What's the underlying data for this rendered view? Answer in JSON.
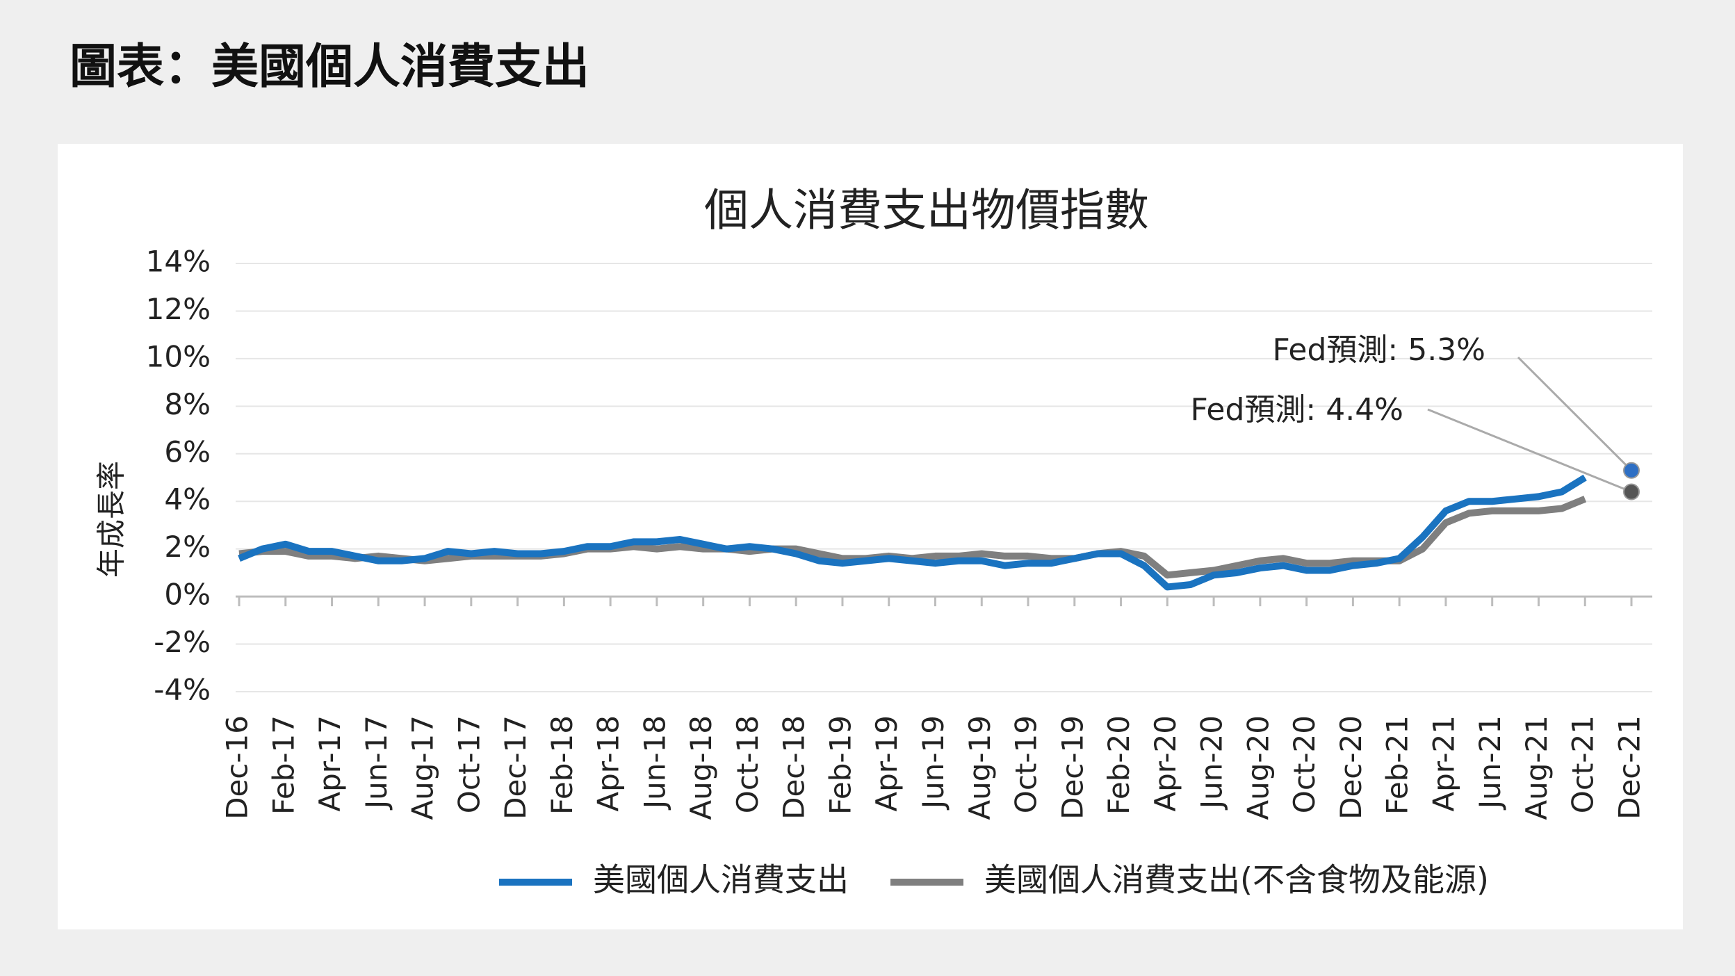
{
  "page_title": "圖表：美國個人消費支出",
  "chart_data": {
    "type": "line",
    "title": "個人消費支出物價指數",
    "y_label": "年成長率",
    "categories": [
      "Dec-16",
      null,
      "Feb-17",
      null,
      "Apr-17",
      null,
      "Jun-17",
      null,
      "Aug-17",
      null,
      "Oct-17",
      null,
      "Dec-17",
      null,
      "Feb-18",
      null,
      "Apr-18",
      null,
      "Jun-18",
      null,
      "Aug-18",
      null,
      "Oct-18",
      null,
      "Dec-18",
      null,
      "Feb-19",
      null,
      "Apr-19",
      null,
      "Jun-19",
      null,
      "Aug-19",
      null,
      "Oct-19",
      null,
      "Dec-19",
      null,
      "Feb-20",
      null,
      "Apr-20",
      null,
      "Jun-20",
      null,
      "Aug-20",
      null,
      "Oct-20",
      null,
      "Dec-20",
      null,
      "Feb-21",
      null,
      "Apr-21",
      null,
      "Jun-21",
      null,
      "Aug-21",
      null,
      "Oct-21",
      null,
      "Dec-21"
    ],
    "series": [
      {
        "name": "美國個人消費支出",
        "color": "#1a73c0",
        "values": [
          1.6,
          2.0,
          2.2,
          1.9,
          1.9,
          1.7,
          1.5,
          1.5,
          1.6,
          1.9,
          1.8,
          1.9,
          1.8,
          1.8,
          1.9,
          2.1,
          2.1,
          2.3,
          2.3,
          2.4,
          2.2,
          2.0,
          2.1,
          2.0,
          1.8,
          1.5,
          1.4,
          1.5,
          1.6,
          1.5,
          1.4,
          1.5,
          1.5,
          1.3,
          1.4,
          1.4,
          1.6,
          1.8,
          1.8,
          1.3,
          0.4,
          0.5,
          0.9,
          1.0,
          1.2,
          1.3,
          1.1,
          1.1,
          1.3,
          1.4,
          1.6,
          2.5,
          3.6,
          4.0,
          4.0,
          4.1,
          4.2,
          4.4,
          5.0,
          null,
          null
        ]
      },
      {
        "name": "美國個人消費支出(不含食物及能源)",
        "color": "#7f7f7f",
        "values": [
          1.8,
          1.9,
          1.9,
          1.7,
          1.7,
          1.6,
          1.7,
          1.6,
          1.5,
          1.6,
          1.7,
          1.7,
          1.7,
          1.7,
          1.8,
          2.0,
          2.0,
          2.1,
          2.0,
          2.1,
          2.0,
          2.0,
          1.9,
          2.0,
          2.0,
          1.8,
          1.6,
          1.6,
          1.7,
          1.6,
          1.7,
          1.7,
          1.8,
          1.7,
          1.7,
          1.6,
          1.6,
          1.8,
          1.9,
          1.7,
          0.9,
          1.0,
          1.1,
          1.3,
          1.5,
          1.6,
          1.4,
          1.4,
          1.5,
          1.5,
          1.5,
          2.0,
          3.1,
          3.5,
          3.6,
          3.6,
          3.6,
          3.7,
          4.1,
          null,
          null
        ]
      }
    ],
    "annotations": [
      {
        "text": "Fed預測: 5.3%",
        "value": 5.3,
        "color": "#2e6fc4"
      },
      {
        "text": "Fed預測: 4.4%",
        "value": 4.4,
        "color": "#555555"
      }
    ],
    "ylim": [
      -4,
      14
    ],
    "yticks": [
      {
        "value": -4,
        "label": "-4%"
      },
      {
        "value": -2,
        "label": "-2%"
      },
      {
        "value": 0,
        "label": "0%"
      },
      {
        "value": 2,
        "label": "2%"
      },
      {
        "value": 4,
        "label": "4%"
      },
      {
        "value": 6,
        "label": "6%"
      },
      {
        "value": 8,
        "label": "8%"
      },
      {
        "value": 10,
        "label": "10%"
      },
      {
        "value": 12,
        "label": "12%"
      },
      {
        "value": 14,
        "label": "14%"
      }
    ],
    "grid": true,
    "legend": "bottom"
  }
}
